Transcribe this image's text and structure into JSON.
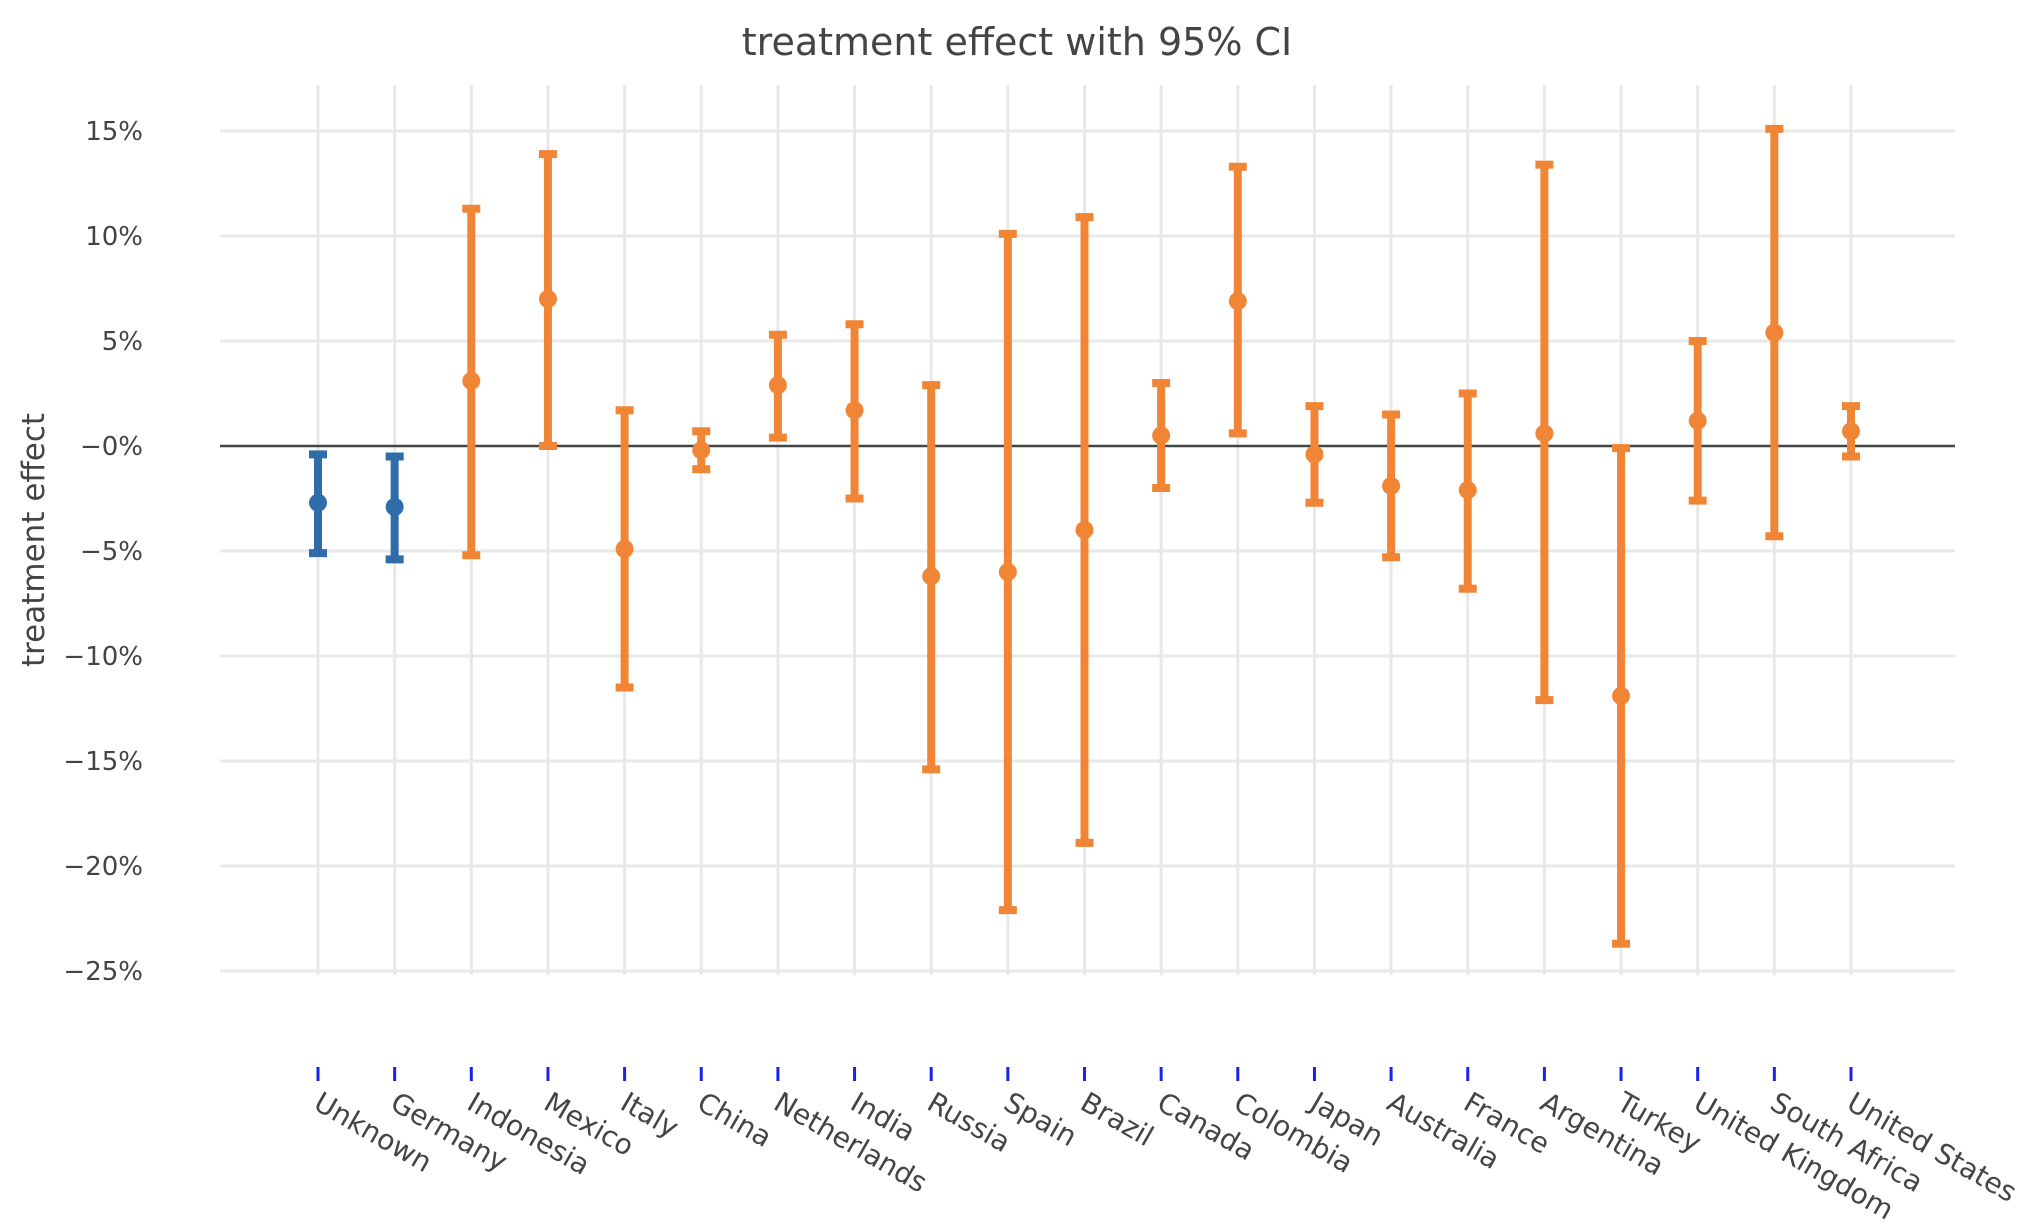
{
  "chart_data": {
    "type": "errorbar",
    "title": "treatment effect with 95% CI",
    "xlabel": "",
    "ylabel": "treatment effect",
    "ylim": [
      -27.5,
      17.5
    ],
    "yticks": [
      15,
      10,
      5,
      0,
      -5,
      -10,
      -15,
      -20,
      -25
    ],
    "ytick_labels": [
      "15%",
      "10%",
      "5%",
      "−0%",
      "−5%",
      "−10%",
      "−15%",
      "−20%",
      "−25%"
    ],
    "zero_line": true,
    "grid": true,
    "colors": {
      "highlight": "#2E6DAA",
      "default": "#F08535",
      "grid": "#E8E8E8",
      "zeroline": "#444444",
      "tick_marks": "#1A22E8",
      "text": "#444444"
    },
    "categories": [
      "Unknown",
      "Germany",
      "Indonesia",
      "Mexico",
      "Italy",
      "China",
      "Netherlands",
      "India",
      "Russia",
      "Spain",
      "Brazil",
      "Canada",
      "Colombia",
      "Japan",
      "Australia",
      "France",
      "Argentina",
      "Turkey",
      "United Kingdom",
      "South Africa",
      "United States"
    ],
    "points": [
      {
        "country": "Unknown",
        "value": -2.7,
        "ci_low": -5.1,
        "ci_high": -0.4,
        "group": "highlight"
      },
      {
        "country": "Germany",
        "value": -2.9,
        "ci_low": -5.4,
        "ci_high": -0.5,
        "group": "highlight"
      },
      {
        "country": "Indonesia",
        "value": 3.1,
        "ci_low": -5.2,
        "ci_high": 11.3,
        "group": "default"
      },
      {
        "country": "Mexico",
        "value": 7.0,
        "ci_low": 0.0,
        "ci_high": 13.9,
        "group": "default"
      },
      {
        "country": "Italy",
        "value": -4.9,
        "ci_low": -11.5,
        "ci_high": 1.7,
        "group": "default"
      },
      {
        "country": "China",
        "value": -0.2,
        "ci_low": -1.1,
        "ci_high": 0.7,
        "group": "default"
      },
      {
        "country": "Netherlands",
        "value": 2.9,
        "ci_low": 0.4,
        "ci_high": 5.3,
        "group": "default"
      },
      {
        "country": "India",
        "value": 1.7,
        "ci_low": -2.5,
        "ci_high": 5.8,
        "group": "default"
      },
      {
        "country": "Russia",
        "value": -6.2,
        "ci_low": -15.4,
        "ci_high": 2.9,
        "group": "default"
      },
      {
        "country": "Spain",
        "value": -6.0,
        "ci_low": -22.1,
        "ci_high": 10.1,
        "group": "default"
      },
      {
        "country": "Brazil",
        "value": -4.0,
        "ci_low": -18.9,
        "ci_high": 10.9,
        "group": "default"
      },
      {
        "country": "Canada",
        "value": 0.5,
        "ci_low": -2.0,
        "ci_high": 3.0,
        "group": "default"
      },
      {
        "country": "Colombia",
        "value": 6.9,
        "ci_low": 0.6,
        "ci_high": 13.3,
        "group": "default"
      },
      {
        "country": "Japan",
        "value": -0.4,
        "ci_low": -2.7,
        "ci_high": 1.9,
        "group": "default"
      },
      {
        "country": "Australia",
        "value": -1.9,
        "ci_low": -5.3,
        "ci_high": 1.5,
        "group": "default"
      },
      {
        "country": "France",
        "value": -2.1,
        "ci_low": -6.8,
        "ci_high": 2.5,
        "group": "default"
      },
      {
        "country": "Argentina",
        "value": 0.6,
        "ci_low": -12.1,
        "ci_high": 13.4,
        "group": "default"
      },
      {
        "country": "Turkey",
        "value": -11.9,
        "ci_low": -23.7,
        "ci_high": -0.1,
        "group": "default"
      },
      {
        "country": "United Kingdom",
        "value": 1.2,
        "ci_low": -2.6,
        "ci_high": 5.0,
        "group": "default"
      },
      {
        "country": "South Africa",
        "value": 5.4,
        "ci_low": -4.3,
        "ci_high": 15.1,
        "group": "default"
      },
      {
        "country": "United States",
        "value": 0.7,
        "ci_low": -0.5,
        "ci_high": 1.9,
        "group": "default"
      }
    ]
  }
}
